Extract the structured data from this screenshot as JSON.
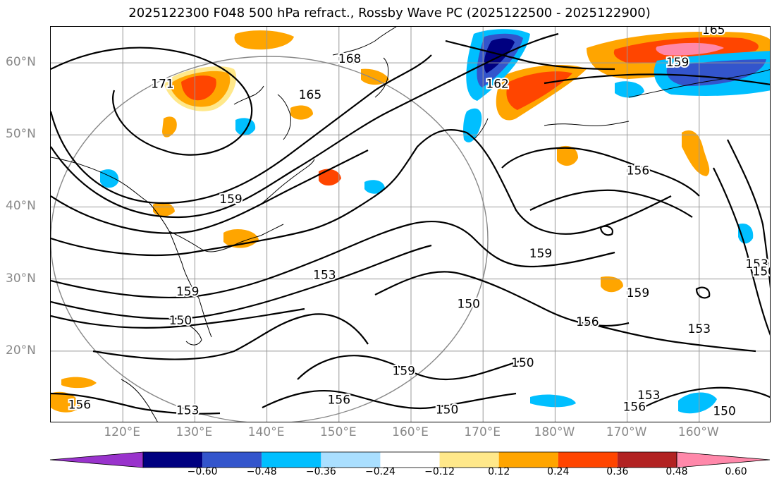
{
  "title": "2025122300 F048 500 hPa refract., Rossby Wave PC (2025122500 - 2025122900)",
  "lat_labels": [
    {
      "text": "60°N",
      "lat": 60
    },
    {
      "text": "50°N",
      "lat": 50
    },
    {
      "text": "40°N",
      "lat": 40
    },
    {
      "text": "30°N",
      "lat": 30
    },
    {
      "text": "20°N",
      "lat": 20
    }
  ],
  "lon_labels": [
    {
      "text": "120°E",
      "lon": 120
    },
    {
      "text": "130°E",
      "lon": 130
    },
    {
      "text": "140°E",
      "lon": 140
    },
    {
      "text": "150°E",
      "lon": 150
    },
    {
      "text": "160°E",
      "lon": 160
    },
    {
      "text": "170°E",
      "lon": 170
    },
    {
      "text": "180°W",
      "lon": 180
    },
    {
      "text": "170°W",
      "lon": 190
    },
    {
      "text": "160°W",
      "lon": 200
    }
  ],
  "map_extent": {
    "lon_min": 110,
    "lon_max": 210,
    "lat_min": 10,
    "lat_max": 65
  },
  "colorbar": {
    "colors": [
      "#9933cc",
      "#000080",
      "#3355cc",
      "#00bfff",
      "#aadfff",
      "#ffffff",
      "#ffe88a",
      "#ffa500",
      "#ff4500",
      "#b22222",
      "#ff88aa"
    ],
    "tick_labels": [
      "−0.60",
      "−0.48",
      "−0.36",
      "−0.24",
      "−0.12",
      "0.12",
      "0.24",
      "0.36",
      "0.48",
      "0.60"
    ]
  },
  "contour_labels": [
    {
      "text": "171",
      "lon": 125.5,
      "lat": 57
    },
    {
      "text": "168",
      "lon": 151.5,
      "lat": 60.5
    },
    {
      "text": "165",
      "lon": 146,
      "lat": 55.5
    },
    {
      "text": "162",
      "lon": 172,
      "lat": 57
    },
    {
      "text": "159",
      "lon": 197,
      "lat": 60
    },
    {
      "text": "165",
      "lon": 202,
      "lat": 64.5
    },
    {
      "text": "159",
      "lon": 135,
      "lat": 41
    },
    {
      "text": "156",
      "lon": 191.5,
      "lat": 45
    },
    {
      "text": "159",
      "lon": 178,
      "lat": 33.5
    },
    {
      "text": "153",
      "lon": 148,
      "lat": 30.5
    },
    {
      "text": "159",
      "lon": 129,
      "lat": 28.2
    },
    {
      "text": "150",
      "lon": 128,
      "lat": 24.2
    },
    {
      "text": "150",
      "lon": 168,
      "lat": 26.5
    },
    {
      "text": "156",
      "lon": 184.5,
      "lat": 24
    },
    {
      "text": "159",
      "lon": 191.5,
      "lat": 28
    },
    {
      "text": "153",
      "lon": 200,
      "lat": 23
    },
    {
      "text": "153",
      "lon": 208,
      "lat": 32
    },
    {
      "text": "150",
      "lon": 209,
      "lat": 31
    },
    {
      "text": "150",
      "lon": 175.5,
      "lat": 18.3
    },
    {
      "text": "159",
      "lon": 159,
      "lat": 17.2
    },
    {
      "text": "156",
      "lon": 150,
      "lat": 13.2
    },
    {
      "text": "150",
      "lon": 165,
      "lat": 11.8
    },
    {
      "text": "153",
      "lon": 129,
      "lat": 11.7
    },
    {
      "text": "153",
      "lon": 193,
      "lat": 13.8
    },
    {
      "text": "156",
      "lon": 191,
      "lat": 12.2
    },
    {
      "text": "150",
      "lon": 203.5,
      "lat": 11.6
    },
    {
      "text": "156",
      "lon": 114,
      "lat": 12.5
    }
  ]
}
